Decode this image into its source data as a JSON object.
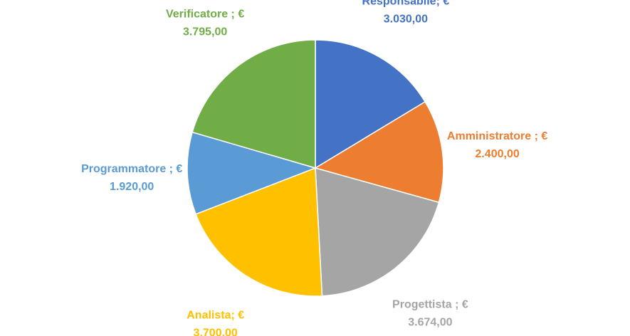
{
  "chart_data": {
    "type": "pie",
    "title": "",
    "start_angle_deg": 0,
    "direction": "clockwise",
    "legend": "none",
    "slices": [
      {
        "label": "Responsabile",
        "value": 3030.0,
        "display": "€ 3.030,00",
        "label_line1": "Responsabile; €",
        "label_line2": "3.030,00",
        "color": "#4472C4"
      },
      {
        "label": "Amministratore",
        "value": 2400.0,
        "display": "€ 2.400,00",
        "label_line1": "Amministratore ; €",
        "label_line2": "2.400,00",
        "color": "#ED7D31"
      },
      {
        "label": "Progettista",
        "value": 3674.0,
        "display": "€ 3.674,00",
        "label_line1": "Progettista ; €",
        "label_line2": "3.674,00",
        "color": "#A5A5A5"
      },
      {
        "label": "Analista",
        "value": 3700.0,
        "display": "€ 3.700,00",
        "label_line1": "Analista; €",
        "label_line2": "3.700,00",
        "color": "#FFC000"
      },
      {
        "label": "Programmatore",
        "value": 1920.0,
        "display": "€ 1.920,00",
        "label_line1": "Programmatore ; €",
        "label_line2": "1.920,00",
        "color": "#5B9BD5"
      },
      {
        "label": "Verificatore",
        "value": 3795.0,
        "display": "€ 3.795,00",
        "label_line1": "Verificatore ; €",
        "label_line2": "3.795,00",
        "color": "#70AD47"
      }
    ]
  }
}
